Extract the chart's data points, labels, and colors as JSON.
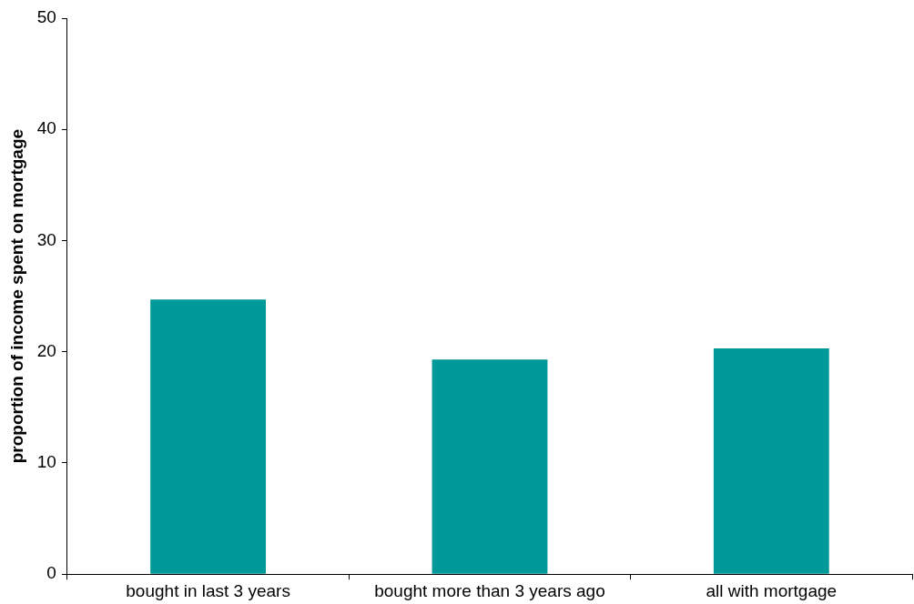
{
  "chart_data": {
    "type": "bar",
    "ylabel": "proportion of income spent on mortgage",
    "categories": [
      "bought in last 3 years",
      "bought more than 3 years ago",
      "all with mortgage"
    ],
    "values": [
      24.7,
      19.3,
      20.3
    ],
    "color": "#009999",
    "ylim": [
      0,
      50
    ],
    "yticks": [
      0,
      10,
      20,
      30,
      40,
      50
    ],
    "grid": false,
    "legend": false
  }
}
